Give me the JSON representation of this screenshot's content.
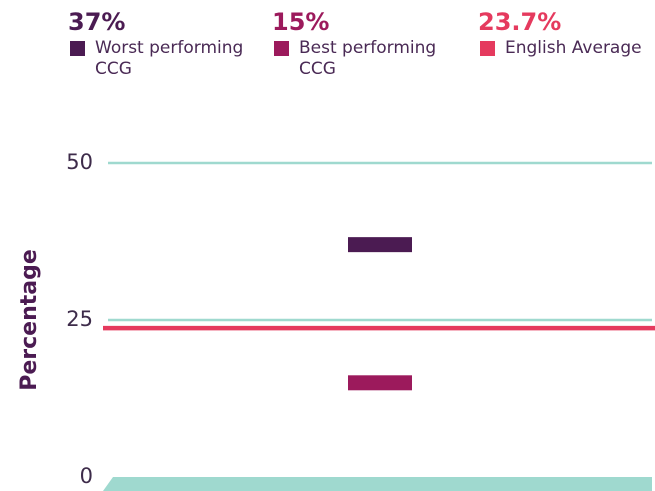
{
  "chart_data": {
    "type": "marker",
    "ylabel": "Percentage",
    "ylim": [
      0,
      50
    ],
    "yticks": [
      0,
      25,
      50
    ],
    "grid": true,
    "series": [
      {
        "name": "Worst performing CCG",
        "color": "#4b1b52",
        "values": [
          37
        ],
        "value_labels": [
          "37%"
        ],
        "mark": "bar"
      },
      {
        "name": "Best performing CCG",
        "color": "#9c1a5c",
        "values": [
          15
        ],
        "value_labels": [
          "15%"
        ],
        "mark": "bar"
      },
      {
        "name": "English Average",
        "color": "#e53a5e",
        "values": [
          23.7
        ],
        "value_labels": [
          "23.7%"
        ],
        "mark": "line"
      }
    ]
  }
}
